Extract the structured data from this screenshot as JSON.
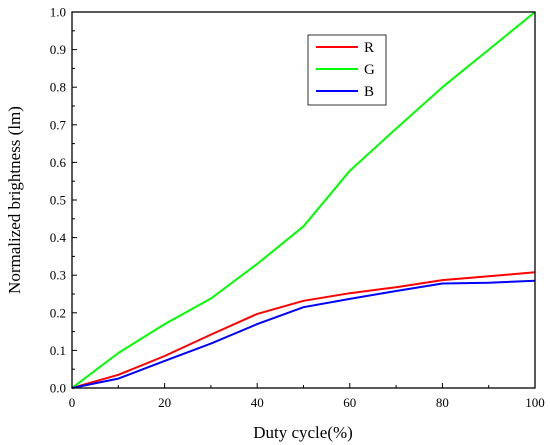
{
  "chart_data": {
    "type": "line",
    "title": "",
    "xlabel": "Duty cycle(%)",
    "ylabel": "Normalized brightness (lm)",
    "xlim": [
      0,
      100
    ],
    "ylim": [
      0,
      1.0
    ],
    "x_ticks": [
      "0",
      "20",
      "40",
      "60",
      "80",
      "100"
    ],
    "y_ticks": [
      "0.0",
      "0.1",
      "0.2",
      "0.3",
      "0.4",
      "0.5",
      "0.6",
      "0.7",
      "0.8",
      "0.9",
      "1.0"
    ],
    "grid": false,
    "legend_position": "top-center",
    "series": [
      {
        "name": "R",
        "color": "#ff0000",
        "x": [
          0,
          10,
          20,
          30,
          40,
          50,
          60,
          70,
          80,
          90,
          100
        ],
        "y": [
          0.0,
          0.035,
          0.085,
          0.142,
          0.197,
          0.232,
          0.252,
          0.268,
          0.287,
          0.297,
          0.308
        ]
      },
      {
        "name": "G",
        "color": "#00ff00",
        "x": [
          0,
          10,
          20,
          30,
          40,
          50,
          60,
          70,
          80,
          90,
          100
        ],
        "y": [
          0.0,
          0.093,
          0.17,
          0.238,
          0.33,
          0.43,
          0.578,
          0.69,
          0.8,
          0.9,
          1.0
        ]
      },
      {
        "name": "B",
        "color": "#0000ff",
        "x": [
          0,
          10,
          20,
          30,
          40,
          50,
          60,
          70,
          80,
          90,
          100
        ],
        "y": [
          0.0,
          0.025,
          0.072,
          0.118,
          0.17,
          0.215,
          0.237,
          0.258,
          0.278,
          0.28,
          0.285
        ]
      }
    ]
  }
}
